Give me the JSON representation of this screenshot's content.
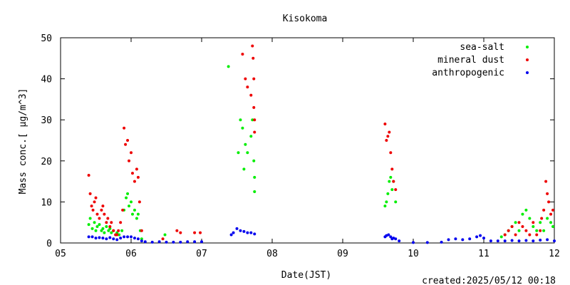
{
  "chart_data": {
    "type": "scatter",
    "title": "Kisokoma",
    "xlabel": "Date(JST)",
    "ylabel": "Mass conc.[ μg/m^3]",
    "xticks": [
      "05",
      "06",
      "07",
      "08",
      "09",
      "10",
      "11",
      "12"
    ],
    "xlim": [
      5,
      12
    ],
    "yticks": [
      "0",
      "10",
      "20",
      "30",
      "40",
      "50"
    ],
    "ylim": [
      0,
      50
    ],
    "grid": false,
    "legend_position": "top-right",
    "footer": "created:2025/05/12 00:18",
    "colors": {
      "sea-salt": "#00ee00",
      "mineral dust": "#ee0000",
      "anthropogenic": "#0000ee"
    },
    "series": [
      {
        "name": "sea-salt",
        "color": "#00ee00",
        "x": [
          5.4,
          5.42,
          5.45,
          5.48,
          5.5,
          5.52,
          5.55,
          5.58,
          5.6,
          5.62,
          5.65,
          5.68,
          5.7,
          5.72,
          5.75,
          5.78,
          5.8,
          5.83,
          5.87,
          5.9,
          5.93,
          5.95,
          5.97,
          6.0,
          6.02,
          6.05,
          6.08,
          6.1,
          6.13,
          6.15,
          6.48,
          7.38,
          7.52,
          7.55,
          7.58,
          7.6,
          7.62,
          7.65,
          7.7,
          7.72,
          7.74,
          7.75,
          7.75,
          9.6,
          9.62,
          9.64,
          9.66,
          9.68,
          9.7,
          9.72,
          9.75,
          11.25,
          11.3,
          11.35,
          11.4,
          11.45,
          11.5,
          11.55,
          11.6,
          11.65,
          11.7,
          11.75,
          11.8,
          11.85,
          11.9,
          11.95,
          11.98
        ],
        "y": [
          4.5,
          6,
          3.5,
          5,
          3,
          4,
          4.5,
          3,
          3.5,
          2.5,
          4,
          3,
          3.5,
          2.5,
          3,
          2,
          2.5,
          2,
          3,
          8,
          11,
          12,
          9,
          10,
          7,
          8,
          6,
          7,
          3,
          1,
          2,
          43,
          22,
          30,
          28,
          18,
          24,
          22,
          26,
          30,
          20,
          16,
          12.5,
          9,
          10,
          12,
          15,
          16,
          13,
          15,
          10,
          1.5,
          2,
          3,
          4,
          5,
          3,
          7,
          8,
          6,
          4,
          3,
          5,
          3,
          6,
          5,
          4
        ],
        "labels": []
      },
      {
        "name": "mineral dust",
        "color": "#ee0000",
        "x": [
          5.4,
          5.42,
          5.44,
          5.46,
          5.48,
          5.5,
          5.52,
          5.55,
          5.58,
          5.6,
          5.62,
          5.65,
          5.67,
          5.7,
          5.72,
          5.75,
          5.78,
          5.8,
          5.82,
          5.85,
          5.88,
          5.9,
          5.92,
          5.95,
          5.97,
          6.0,
          6.02,
          6.05,
          6.08,
          6.1,
          6.12,
          6.15,
          6.45,
          6.65,
          6.7,
          6.9,
          6.98,
          7.58,
          7.62,
          7.65,
          7.7,
          7.72,
          7.73,
          7.74,
          7.74,
          7.75,
          7.75,
          9.6,
          9.62,
          9.64,
          9.66,
          9.68,
          9.7,
          9.72,
          9.75,
          11.3,
          11.35,
          11.4,
          11.45,
          11.5,
          11.55,
          11.6,
          11.65,
          11.7,
          11.75,
          11.8,
          11.82,
          11.85,
          11.88,
          11.9,
          11.92,
          11.95,
          11.98
        ],
        "y": [
          16.5,
          12,
          9,
          8,
          10,
          11,
          7,
          6,
          8,
          9,
          7,
          5,
          6,
          4,
          5,
          3,
          2,
          2,
          3,
          5,
          8,
          28,
          24,
          25,
          20,
          22,
          17,
          15,
          18,
          16,
          10,
          3,
          1,
          3,
          2.5,
          2.5,
          2.5,
          46,
          40,
          38,
          36,
          48,
          45,
          40,
          33,
          30,
          27,
          29,
          25,
          26,
          27,
          22,
          18,
          15,
          13,
          2,
          3,
          4,
          2,
          5,
          4,
          3,
          2,
          5,
          2,
          3,
          6,
          8,
          15,
          12,
          10,
          7,
          8
        ],
        "labels": []
      },
      {
        "name": "anthropogenic",
        "color": "#0000ee",
        "x": [
          5.4,
          5.45,
          5.5,
          5.55,
          5.6,
          5.65,
          5.7,
          5.75,
          5.8,
          5.85,
          5.9,
          5.95,
          6.0,
          6.05,
          6.1,
          6.15,
          6.2,
          6.3,
          6.4,
          6.5,
          6.6,
          6.7,
          6.8,
          6.9,
          7.0,
          7.42,
          7.45,
          7.5,
          7.55,
          7.6,
          7.65,
          7.7,
          7.75,
          9.6,
          9.62,
          9.65,
          9.68,
          9.7,
          9.72,
          9.75,
          9.8,
          10.0,
          10.2,
          10.4,
          10.5,
          10.6,
          10.7,
          10.8,
          10.9,
          10.95,
          11.0,
          11.1,
          11.2,
          11.3,
          11.4,
          11.5,
          11.6,
          11.7,
          11.8,
          11.9,
          12.0
        ],
        "y": [
          1.5,
          1.5,
          1.2,
          1.3,
          1.2,
          1.0,
          1.3,
          1.0,
          0.8,
          1.2,
          1.5,
          1.5,
          1.5,
          1.2,
          1.0,
          0.5,
          0.3,
          0.2,
          0.3,
          0.2,
          0.2,
          0.2,
          0.3,
          0.3,
          0.3,
          2.0,
          2.5,
          3.5,
          3.0,
          2.8,
          2.5,
          2.5,
          2.2,
          1.5,
          1.8,
          2.0,
          1.5,
          1.0,
          1.2,
          1.0,
          0.5,
          0.1,
          0.1,
          0.2,
          0.8,
          1.0,
          0.8,
          1.0,
          1.5,
          1.8,
          1.2,
          0.5,
          0.5,
          0.5,
          0.6,
          0.5,
          0.6,
          0.5,
          0.7,
          0.8,
          0.5
        ],
        "labels": []
      }
    ]
  }
}
